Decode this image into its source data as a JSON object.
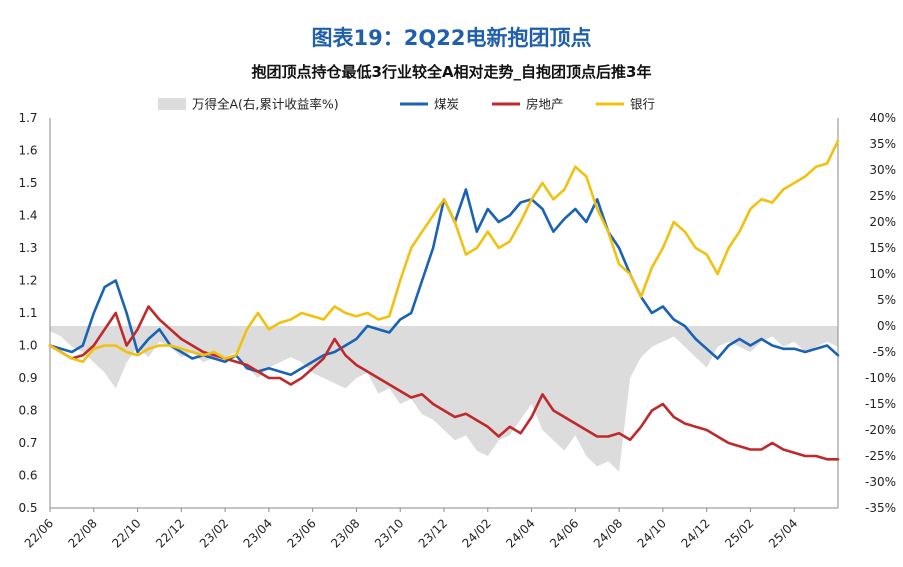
{
  "title": "图表19：2Q22电新抱团顶点",
  "subtitle": "抱团顶点持仓最低3行业较全A相对走势_自抱团顶点后推3年",
  "colors": {
    "coal": "#1a62b4",
    "real_estate": "#c0292b",
    "bank": "#f2c10f",
    "wind_a": "#dcdcdc",
    "axis": "#888888",
    "title": "#1f5fae"
  },
  "chart_data": {
    "type": "line",
    "x_tick_labels": [
      "22/06",
      "22/08",
      "22/10",
      "22/12",
      "23/02",
      "23/04",
      "23/06",
      "23/08",
      "23/10",
      "23/12",
      "24/02",
      "24/04",
      "24/06",
      "24/08",
      "24/10",
      "24/12",
      "25/02",
      "25/04"
    ],
    "ylim_left": [
      0.5,
      1.7
    ],
    "y_ticks_left": [
      "1.7",
      "1.6",
      "1.5",
      "1.4",
      "1.3",
      "1.2",
      "1.1",
      "1.0",
      "0.9",
      "0.8",
      "0.7",
      "0.6",
      "0.5"
    ],
    "ylim_right": [
      -35,
      40
    ],
    "y_ticks_right": [
      "40%",
      "35%",
      "30%",
      "25%",
      "20%",
      "15%",
      "10%",
      "5%",
      "0%",
      "-5%",
      "-10%",
      "-15%",
      "-20%",
      "-25%",
      "-30%",
      "-35%"
    ],
    "series": [
      {
        "name": "万得全A(右,累计收益率%)",
        "type": "area",
        "axis": "right",
        "color_key": "wind_a",
        "t": [
          0,
          0.5,
          1,
          1.5,
          2,
          2.5,
          3,
          3.5,
          4,
          4.5,
          5,
          5.5,
          6,
          6.5,
          7,
          7.5,
          8,
          8.5,
          9,
          9.5,
          10,
          10.5,
          11,
          11.5,
          12,
          12.5,
          13,
          13.5,
          14,
          14.5,
          15,
          15.5,
          16,
          16.5,
          17,
          17.5,
          18,
          18.5,
          19,
          19.5,
          20,
          20.5,
          21,
          21.5,
          22,
          22.5,
          23,
          23.5,
          24,
          24.5,
          25,
          25.5,
          26,
          26.5,
          27,
          27.5,
          28,
          28.5,
          29,
          29.5,
          30,
          30.5,
          31,
          31.5,
          32,
          32.5,
          33,
          33.5,
          34,
          34.5,
          35,
          35.5,
          36
        ],
        "values": [
          -1,
          -2,
          -4,
          -5,
          -7,
          -9,
          -12,
          -7,
          -4,
          -6,
          -3,
          -4,
          -6,
          -5,
          -7,
          -6,
          -6,
          -5,
          -8,
          -10,
          -8,
          -7,
          -6,
          -7,
          -9,
          -10,
          -11,
          -12,
          -10,
          -9,
          -13,
          -12,
          -15,
          -14,
          -17,
          -18,
          -20,
          -22,
          -21,
          -24,
          -25,
          -22,
          -21,
          -18,
          -15,
          -20,
          -22,
          -24,
          -21,
          -25,
          -27,
          -26,
          -28,
          -10,
          -6,
          -4,
          -3,
          -2,
          -4,
          -6,
          -8,
          -4,
          -3,
          -4,
          -5,
          -3,
          -2,
          -4,
          -3,
          -5,
          -4,
          -3,
          -4
        ]
      },
      {
        "name": "煤炭",
        "type": "line",
        "axis": "left",
        "color_key": "coal",
        "t": [
          0,
          0.5,
          1,
          1.5,
          2,
          2.5,
          3,
          3.5,
          4,
          4.5,
          5,
          5.5,
          6,
          6.5,
          7,
          7.5,
          8,
          8.5,
          9,
          9.5,
          10,
          10.5,
          11,
          11.5,
          12,
          12.5,
          13,
          13.5,
          14,
          14.5,
          15,
          15.5,
          16,
          16.5,
          17,
          17.5,
          18,
          18.5,
          19,
          19.5,
          20,
          20.5,
          21,
          21.5,
          22,
          22.5,
          23,
          23.5,
          24,
          24.5,
          25,
          25.5,
          26,
          26.5,
          27,
          27.5,
          28,
          28.5,
          29,
          29.5,
          30,
          30.5,
          31,
          31.5,
          32,
          32.5,
          33,
          33.5,
          34,
          34.5,
          35,
          35.5,
          36
        ],
        "values": [
          1.0,
          0.99,
          0.98,
          1.0,
          1.1,
          1.18,
          1.2,
          1.1,
          0.98,
          1.02,
          1.05,
          1.0,
          0.98,
          0.96,
          0.97,
          0.96,
          0.95,
          0.97,
          0.93,
          0.92,
          0.93,
          0.92,
          0.91,
          0.93,
          0.95,
          0.97,
          0.98,
          1.0,
          1.02,
          1.06,
          1.05,
          1.04,
          1.08,
          1.1,
          1.2,
          1.3,
          1.45,
          1.38,
          1.48,
          1.35,
          1.42,
          1.38,
          1.4,
          1.44,
          1.45,
          1.42,
          1.35,
          1.39,
          1.42,
          1.38,
          1.45,
          1.35,
          1.3,
          1.22,
          1.15,
          1.1,
          1.12,
          1.08,
          1.06,
          1.02,
          0.99,
          0.96,
          1.0,
          1.02,
          1.0,
          1.02,
          1.0,
          0.99,
          0.99,
          0.98,
          0.99,
          1.0,
          0.97
        ]
      },
      {
        "name": "房地产",
        "type": "line",
        "axis": "left",
        "color_key": "real_estate",
        "t": [
          0,
          0.5,
          1,
          1.5,
          2,
          2.5,
          3,
          3.5,
          4,
          4.5,
          5,
          5.5,
          6,
          6.5,
          7,
          7.5,
          8,
          8.5,
          9,
          9.5,
          10,
          10.5,
          11,
          11.5,
          12,
          12.5,
          13,
          13.5,
          14,
          14.5,
          15,
          15.5,
          16,
          16.5,
          17,
          17.5,
          18,
          18.5,
          19,
          19.5,
          20,
          20.5,
          21,
          21.5,
          22,
          22.5,
          23,
          23.5,
          24,
          24.5,
          25,
          25.5,
          26,
          26.5,
          27,
          27.5,
          28,
          28.5,
          29,
          29.5,
          30,
          30.5,
          31,
          31.5,
          32,
          32.5,
          33,
          33.5,
          34,
          34.5,
          35,
          35.5,
          36
        ],
        "values": [
          1.0,
          0.98,
          0.96,
          0.97,
          1.0,
          1.05,
          1.1,
          1.0,
          1.05,
          1.12,
          1.08,
          1.05,
          1.02,
          1.0,
          0.98,
          0.97,
          0.96,
          0.95,
          0.94,
          0.92,
          0.9,
          0.9,
          0.88,
          0.9,
          0.93,
          0.96,
          1.02,
          0.97,
          0.94,
          0.92,
          0.9,
          0.88,
          0.86,
          0.84,
          0.85,
          0.82,
          0.8,
          0.78,
          0.79,
          0.77,
          0.75,
          0.72,
          0.75,
          0.73,
          0.78,
          0.85,
          0.8,
          0.78,
          0.76,
          0.74,
          0.72,
          0.72,
          0.73,
          0.71,
          0.75,
          0.8,
          0.82,
          0.78,
          0.76,
          0.75,
          0.74,
          0.72,
          0.7,
          0.69,
          0.68,
          0.68,
          0.7,
          0.68,
          0.67,
          0.66,
          0.66,
          0.65,
          0.65
        ]
      },
      {
        "name": "银行",
        "type": "line",
        "axis": "left",
        "color_key": "bank",
        "t": [
          0,
          0.5,
          1,
          1.5,
          2,
          2.5,
          3,
          3.5,
          4,
          4.5,
          5,
          5.5,
          6,
          6.5,
          7,
          7.5,
          8,
          8.5,
          9,
          9.5,
          10,
          10.5,
          11,
          11.5,
          12,
          12.5,
          13,
          13.5,
          14,
          14.5,
          15,
          15.5,
          16,
          16.5,
          17,
          17.5,
          18,
          18.5,
          19,
          19.5,
          20,
          20.5,
          21,
          21.5,
          22,
          22.5,
          23,
          23.5,
          24,
          24.5,
          25,
          25.5,
          26,
          26.5,
          27,
          27.5,
          28,
          28.5,
          29,
          29.5,
          30,
          30.5,
          31,
          31.5,
          32,
          32.5,
          33,
          33.5,
          34,
          34.5,
          35,
          35.5,
          36
        ],
        "values": [
          1.0,
          0.98,
          0.96,
          0.95,
          0.99,
          1.0,
          1.0,
          0.98,
          0.97,
          0.99,
          1.0,
          1.0,
          0.99,
          0.98,
          0.97,
          0.98,
          0.96,
          0.97,
          1.05,
          1.1,
          1.05,
          1.07,
          1.08,
          1.1,
          1.09,
          1.08,
          1.12,
          1.1,
          1.09,
          1.1,
          1.08,
          1.09,
          1.2,
          1.3,
          1.35,
          1.4,
          1.45,
          1.38,
          1.28,
          1.3,
          1.35,
          1.3,
          1.32,
          1.38,
          1.45,
          1.5,
          1.45,
          1.48,
          1.55,
          1.52,
          1.42,
          1.35,
          1.25,
          1.22,
          1.15,
          1.24,
          1.3,
          1.38,
          1.35,
          1.3,
          1.28,
          1.22,
          1.3,
          1.35,
          1.42,
          1.45,
          1.44,
          1.48,
          1.5,
          1.52,
          1.55,
          1.56,
          1.63
        ]
      }
    ],
    "legend_position": "top"
  }
}
